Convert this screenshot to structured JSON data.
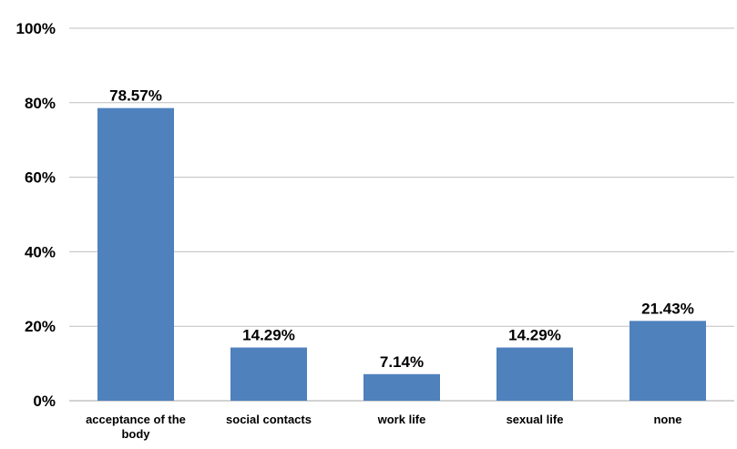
{
  "chart_data": {
    "type": "bar",
    "categories": [
      "acceptance of the body",
      "social contacts",
      "work life",
      "sexual life",
      "none"
    ],
    "values": [
      78.57,
      14.29,
      7.14,
      14.29,
      21.43
    ],
    "data_labels": [
      "78.57%",
      "14.29%",
      "7.14%",
      "14.29%",
      "21.43%"
    ],
    "ylim": [
      0,
      100
    ],
    "yticks": [
      0,
      20,
      40,
      60,
      80,
      100
    ],
    "ytick_labels": [
      "0%",
      "20%",
      "40%",
      "60%",
      "80%",
      "100%"
    ],
    "grid": true,
    "bar_color": "#4f81bd"
  }
}
